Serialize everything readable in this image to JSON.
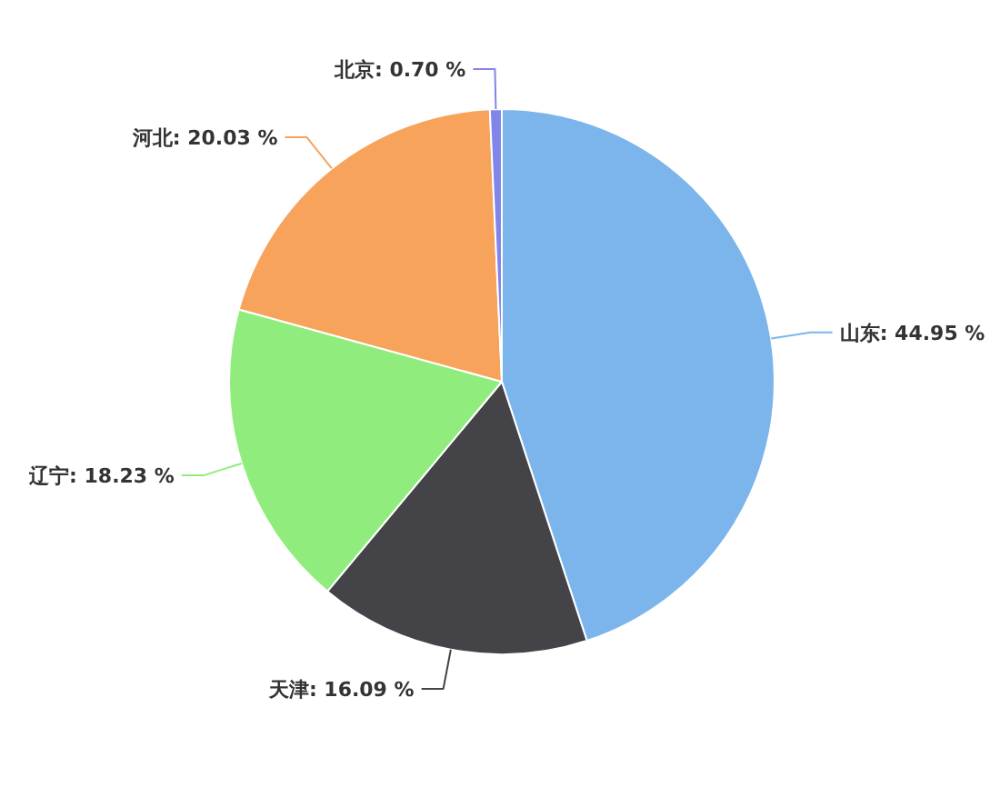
{
  "chart_data": {
    "type": "pie",
    "categories": [
      "山东",
      "天津",
      "辽宁",
      "河北",
      "北京"
    ],
    "values": [
      44.95,
      16.09,
      18.23,
      20.03,
      0.7
    ],
    "value_labels": [
      "44.95 %",
      "16.09 %",
      "18.23 %",
      "20.03 %",
      "0.70 %"
    ],
    "colors": [
      "#7cb5ec",
      "#434348",
      "#90ed7d",
      "#f7a35c",
      "#8085e9"
    ],
    "legend": false
  }
}
